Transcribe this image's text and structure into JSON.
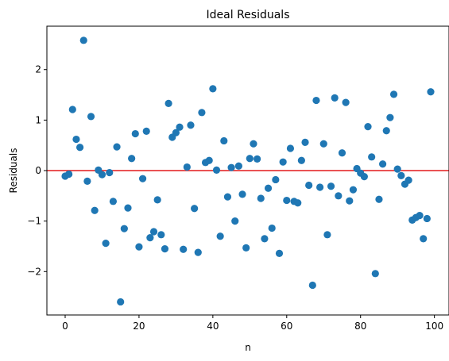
{
  "chart_data": {
    "type": "scatter",
    "title": "Ideal Residuals",
    "xlabel": "n",
    "ylabel": "Residuals",
    "xlim": [
      -4.95,
      103.95
    ],
    "ylim": [
      -2.86,
      2.86
    ],
    "xticks": [
      0,
      20,
      40,
      60,
      80,
      100
    ],
    "xtick_labels": [
      "0",
      "20",
      "40",
      "60",
      "80",
      "100"
    ],
    "yticks": [
      -2,
      -1,
      0,
      1,
      2
    ],
    "ytick_labels": [
      "−2",
      "−1",
      "0",
      "1",
      "2"
    ],
    "grid": false,
    "marker_color": "#1f77b4",
    "reference_line": {
      "y": 0,
      "color": "#e41a1c"
    },
    "x": [
      0,
      1,
      2,
      3,
      4,
      5,
      6,
      7,
      8,
      9,
      10,
      11,
      12,
      13,
      14,
      15,
      16,
      17,
      18,
      19,
      20,
      21,
      22,
      23,
      24,
      25,
      26,
      27,
      28,
      29,
      30,
      31,
      32,
      33,
      34,
      35,
      36,
      37,
      38,
      39,
      40,
      41,
      42,
      43,
      44,
      45,
      46,
      47,
      48,
      49,
      50,
      51,
      52,
      53,
      54,
      55,
      56,
      57,
      58,
      59,
      60,
      61,
      62,
      63,
      64,
      65,
      66,
      67,
      68,
      69,
      70,
      71,
      72,
      73,
      74,
      75,
      76,
      77,
      78,
      79,
      80,
      81,
      82,
      83,
      84,
      85,
      86,
      87,
      88,
      89,
      90,
      91,
      92,
      93,
      94,
      95,
      96,
      97,
      98,
      99
    ],
    "y": [
      -0.11,
      -0.07,
      1.21,
      0.62,
      0.46,
      2.58,
      -0.21,
      1.07,
      -0.79,
      0.01,
      -0.08,
      -1.44,
      -0.04,
      -0.61,
      0.47,
      -2.6,
      -1.15,
      -0.74,
      0.24,
      0.73,
      -1.51,
      -0.16,
      0.78,
      -1.33,
      -1.21,
      -0.58,
      -1.27,
      -1.55,
      1.33,
      0.66,
      0.75,
      0.86,
      -1.56,
      0.07,
      0.9,
      -0.75,
      -1.62,
      1.15,
      0.16,
      0.2,
      1.62,
      0.01,
      -1.3,
      0.59,
      -0.52,
      0.06,
      -1.0,
      0.09,
      -0.47,
      -1.53,
      0.24,
      0.53,
      0.23,
      -0.55,
      -1.35,
      -0.35,
      -1.14,
      -0.18,
      -1.64,
      0.17,
      -0.59,
      0.44,
      -0.61,
      -0.64,
      0.2,
      0.56,
      -0.29,
      -2.27,
      1.39,
      -0.33,
      0.53,
      -1.27,
      -0.31,
      1.44,
      -0.5,
      0.35,
      1.35,
      -0.6,
      -0.38,
      0.04,
      -0.05,
      -0.12,
      0.87,
      0.27,
      -2.04,
      -0.57,
      0.13,
      0.79,
      1.05,
      1.51,
      0.03,
      -0.1,
      -0.27,
      -0.19,
      -0.98,
      -0.93,
      -0.89,
      -1.35,
      -0.95,
      1.56
    ]
  }
}
